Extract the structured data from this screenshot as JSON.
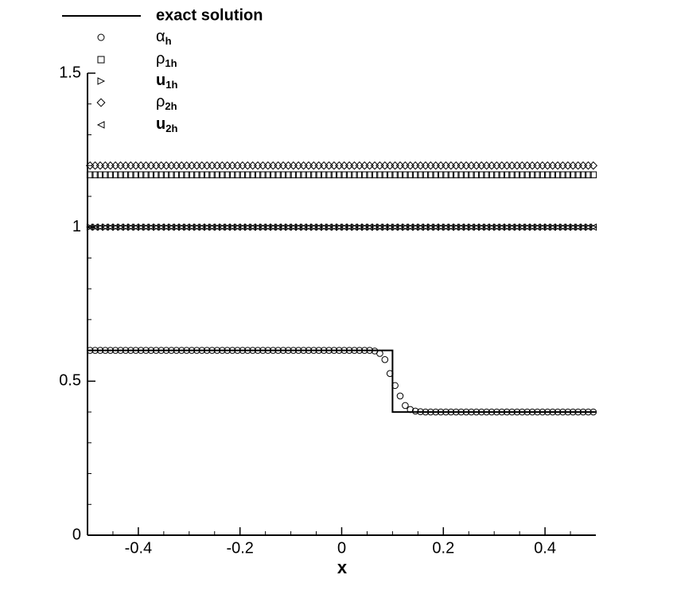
{
  "chart_data": {
    "type": "line",
    "xlabel": "x",
    "xlim": [
      -0.5,
      0.5
    ],
    "ylim": [
      0,
      1.5
    ],
    "xticks": [
      -0.4,
      -0.2,
      0,
      0.2,
      0.4
    ],
    "yticks": [
      0,
      0.5,
      1,
      1.5
    ],
    "xminorticks": [
      -0.45,
      -0.35,
      -0.3,
      -0.25,
      -0.15,
      -0.1,
      -0.05,
      0.05,
      0.1,
      0.15,
      0.25,
      0.3,
      0.35,
      0.45
    ],
    "yminorticks": [
      0.1,
      0.2,
      0.3,
      0.4,
      0.6,
      0.7,
      0.8,
      0.9,
      1.1,
      1.2,
      1.3,
      1.4
    ],
    "x": [
      -0.495,
      -0.485,
      -0.475,
      -0.465,
      -0.455,
      -0.445,
      -0.435,
      -0.425,
      -0.415,
      -0.405,
      -0.395,
      -0.385,
      -0.375,
      -0.365,
      -0.355,
      -0.345,
      -0.335,
      -0.325,
      -0.315,
      -0.305,
      -0.295,
      -0.285,
      -0.275,
      -0.265,
      -0.255,
      -0.245,
      -0.235,
      -0.225,
      -0.215,
      -0.205,
      -0.195,
      -0.185,
      -0.175,
      -0.165,
      -0.155,
      -0.145,
      -0.135,
      -0.125,
      -0.115,
      -0.105,
      -0.095,
      -0.085,
      -0.075,
      -0.065,
      -0.055,
      -0.045,
      -0.035,
      -0.025,
      -0.015,
      -0.005,
      0.005,
      0.015,
      0.025,
      0.035,
      0.045,
      0.055,
      0.065,
      0.075,
      0.085,
      0.095,
      0.105,
      0.115,
      0.125,
      0.135,
      0.145,
      0.155,
      0.165,
      0.175,
      0.185,
      0.195,
      0.205,
      0.215,
      0.225,
      0.235,
      0.245,
      0.255,
      0.265,
      0.275,
      0.285,
      0.295,
      0.305,
      0.315,
      0.325,
      0.335,
      0.345,
      0.355,
      0.365,
      0.375,
      0.385,
      0.395,
      0.405,
      0.415,
      0.425,
      0.435,
      0.445,
      0.455,
      0.465,
      0.475,
      0.485,
      0.495
    ],
    "series": [
      {
        "name": "exact solution",
        "color": "#000000",
        "x": [
          -0.5,
          0.1,
          0.1,
          0.5
        ],
        "values": [
          0.6,
          0.6,
          0.4,
          0.4
        ]
      },
      {
        "name": "αh",
        "marker": "circle",
        "color": "#000000",
        "values": [
          0.6,
          0.6,
          0.6,
          0.6,
          0.6,
          0.6,
          0.6,
          0.6,
          0.6,
          0.6,
          0.6,
          0.6,
          0.6,
          0.6,
          0.6,
          0.6,
          0.6,
          0.6,
          0.6,
          0.6,
          0.6,
          0.6,
          0.6,
          0.6,
          0.6,
          0.6,
          0.6,
          0.6,
          0.6,
          0.6,
          0.6,
          0.6,
          0.6,
          0.6,
          0.6,
          0.6,
          0.6,
          0.6,
          0.6,
          0.6,
          0.6,
          0.6,
          0.6,
          0.6,
          0.6,
          0.6,
          0.6,
          0.6,
          0.6,
          0.6,
          0.6,
          0.6,
          0.6,
          0.6,
          0.6,
          0.6,
          0.598,
          0.59,
          0.57,
          0.525,
          0.486,
          0.452,
          0.421,
          0.408,
          0.403,
          0.401,
          0.4,
          0.4,
          0.4,
          0.4,
          0.4,
          0.4,
          0.4,
          0.4,
          0.4,
          0.4,
          0.4,
          0.4,
          0.4,
          0.4,
          0.4,
          0.4,
          0.4,
          0.4,
          0.4,
          0.4,
          0.4,
          0.4,
          0.4,
          0.4,
          0.4,
          0.4,
          0.4,
          0.4,
          0.4,
          0.4,
          0.4,
          0.4,
          0.4,
          0.4
        ]
      },
      {
        "name": "ρ1h",
        "marker": "square",
        "color": "#000000",
        "values": [
          1.17,
          1.17,
          1.17,
          1.17,
          1.17,
          1.17,
          1.17,
          1.17,
          1.17,
          1.17,
          1.17,
          1.17,
          1.17,
          1.17,
          1.17,
          1.17,
          1.17,
          1.17,
          1.17,
          1.17,
          1.17,
          1.17,
          1.17,
          1.17,
          1.17,
          1.17,
          1.17,
          1.17,
          1.17,
          1.17,
          1.17,
          1.17,
          1.17,
          1.17,
          1.17,
          1.17,
          1.17,
          1.17,
          1.17,
          1.17,
          1.17,
          1.17,
          1.17,
          1.17,
          1.17,
          1.17,
          1.17,
          1.17,
          1.17,
          1.17,
          1.17,
          1.17,
          1.17,
          1.17,
          1.17,
          1.17,
          1.17,
          1.17,
          1.17,
          1.17,
          1.17,
          1.17,
          1.17,
          1.17,
          1.17,
          1.17,
          1.17,
          1.17,
          1.17,
          1.17,
          1.17,
          1.17,
          1.17,
          1.17,
          1.17,
          1.17,
          1.17,
          1.17,
          1.17,
          1.17,
          1.17,
          1.17,
          1.17,
          1.17,
          1.17,
          1.17,
          1.17,
          1.17,
          1.17,
          1.17,
          1.17,
          1.17,
          1.17,
          1.17,
          1.17,
          1.17,
          1.17,
          1.17,
          1.17,
          1.17
        ]
      },
      {
        "name": "u1h",
        "marker": "tri-right",
        "bold": true,
        "color": "#000000",
        "values": [
          1,
          1,
          1,
          1,
          1,
          1,
          1,
          1,
          1,
          1,
          1,
          1,
          1,
          1,
          1,
          1,
          1,
          1,
          1,
          1,
          1,
          1,
          1,
          1,
          1,
          1,
          1,
          1,
          1,
          1,
          1,
          1,
          1,
          1,
          1,
          1,
          1,
          1,
          1,
          1,
          1,
          1,
          1,
          1,
          1,
          1,
          1,
          1,
          1,
          1,
          1,
          1,
          1,
          1,
          1,
          1,
          1,
          1,
          1,
          1,
          1,
          1,
          1,
          1,
          1,
          1,
          1,
          1,
          1,
          1,
          1,
          1,
          1,
          1,
          1,
          1,
          1,
          1,
          1,
          1,
          1,
          1,
          1,
          1,
          1,
          1,
          1,
          1,
          1,
          1,
          1,
          1,
          1,
          1,
          1,
          1,
          1,
          1,
          1,
          1
        ]
      },
      {
        "name": "ρ2h",
        "marker": "diamond",
        "color": "#000000",
        "values": [
          1.2,
          1.2,
          1.2,
          1.2,
          1.2,
          1.2,
          1.2,
          1.2,
          1.2,
          1.2,
          1.2,
          1.2,
          1.2,
          1.2,
          1.2,
          1.2,
          1.2,
          1.2,
          1.2,
          1.2,
          1.2,
          1.2,
          1.2,
          1.2,
          1.2,
          1.2,
          1.2,
          1.2,
          1.2,
          1.2,
          1.2,
          1.2,
          1.2,
          1.2,
          1.2,
          1.2,
          1.2,
          1.2,
          1.2,
          1.2,
          1.2,
          1.2,
          1.2,
          1.2,
          1.2,
          1.2,
          1.2,
          1.2,
          1.2,
          1.2,
          1.2,
          1.2,
          1.2,
          1.2,
          1.2,
          1.2,
          1.2,
          1.2,
          1.2,
          1.2,
          1.2,
          1.2,
          1.2,
          1.2,
          1.2,
          1.2,
          1.2,
          1.2,
          1.2,
          1.2,
          1.2,
          1.2,
          1.2,
          1.2,
          1.2,
          1.2,
          1.2,
          1.2,
          1.2,
          1.2,
          1.2,
          1.2,
          1.2,
          1.2,
          1.2,
          1.2,
          1.2,
          1.2,
          1.2,
          1.2,
          1.2,
          1.2,
          1.2,
          1.2,
          1.2,
          1.2,
          1.2,
          1.2,
          1.2,
          1.2
        ]
      },
      {
        "name": "u2h",
        "marker": "tri-left",
        "bold": true,
        "color": "#000000",
        "values": [
          1,
          1,
          1,
          1,
          1,
          1,
          1,
          1,
          1,
          1,
          1,
          1,
          1,
          1,
          1,
          1,
          1,
          1,
          1,
          1,
          1,
          1,
          1,
          1,
          1,
          1,
          1,
          1,
          1,
          1,
          1,
          1,
          1,
          1,
          1,
          1,
          1,
          1,
          1,
          1,
          1,
          1,
          1,
          1,
          1,
          1,
          1,
          1,
          1,
          1,
          1,
          1,
          1,
          1,
          1,
          1,
          1,
          1,
          1,
          1,
          1,
          1,
          1,
          1,
          1,
          1,
          1,
          1,
          1,
          1,
          1,
          1,
          1,
          1,
          1,
          1,
          1,
          1,
          1,
          1,
          1,
          1,
          1,
          1,
          1,
          1,
          1,
          1,
          1,
          1,
          1,
          1,
          1,
          1,
          1,
          1,
          1,
          1,
          1,
          1
        ]
      }
    ]
  }
}
